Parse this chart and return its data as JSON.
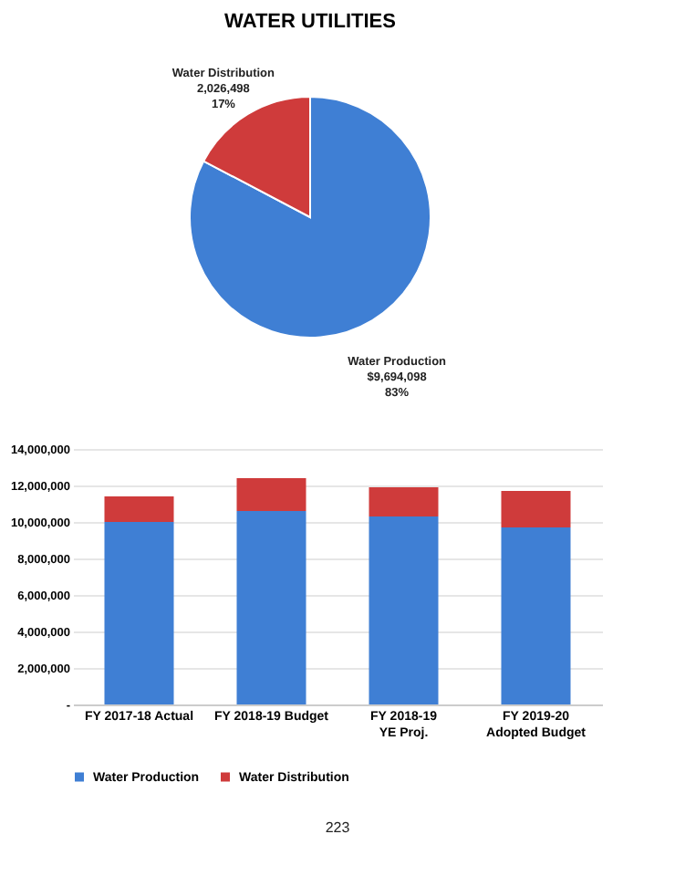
{
  "chart_data": [
    {
      "type": "pie",
      "title": "WATER UTILITIES",
      "categories": [
        "Water Production",
        "Water Distribution"
      ],
      "values": [
        9694098,
        2026498
      ],
      "value_labels": [
        "$9,694,098\n83%",
        "2,026,498\n17%"
      ],
      "colors": [
        "#3f7fd4",
        "#cf3b3b"
      ]
    },
    {
      "type": "bar",
      "stacked": true,
      "categories": [
        "FY 2017-18 Actual",
        "FY 2018-19 Budget",
        "FY 2018-19 YE Proj.",
        "FY 2019-20 Adopted Budget"
      ],
      "series": [
        {
          "name": "Water Production",
          "color": "#3f7fd4",
          "values": [
            10000000,
            10600000,
            10300000,
            9700000
          ]
        },
        {
          "name": "Water Distribution",
          "color": "#cf3b3b",
          "values": [
            1400000,
            1800000,
            1600000,
            2000000
          ]
        }
      ],
      "ylim": [
        0,
        14000000
      ],
      "yticks": [
        {
          "value": 0,
          "label": "-"
        },
        {
          "value": 2000000,
          "label": "2,000,000"
        },
        {
          "value": 4000000,
          "label": "4,000,000"
        },
        {
          "value": 6000000,
          "label": "6,000,000"
        },
        {
          "value": 8000000,
          "label": "8,000,000"
        },
        {
          "value": 10000000,
          "label": "10,000,000"
        },
        {
          "value": 12000000,
          "label": "12,000,000"
        },
        {
          "value": 14000000,
          "label": "14,000,000"
        }
      ],
      "grid": "y",
      "legend": "bottom",
      "annotations": [
        "223"
      ]
    }
  ]
}
